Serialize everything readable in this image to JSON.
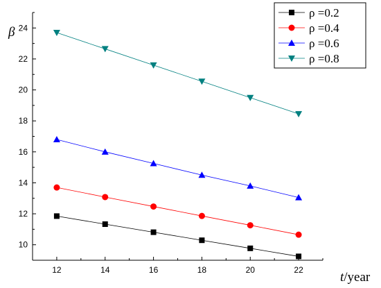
{
  "chart_data": {
    "type": "line",
    "xlabel": {
      "symbol": "t",
      "unit": "/year"
    },
    "ylabel": "β",
    "xlim": [
      11,
      23
    ],
    "ylim": [
      9,
      25
    ],
    "x_ticks": [
      12,
      14,
      16,
      18,
      20,
      22
    ],
    "y_ticks": [
      10,
      12,
      14,
      16,
      18,
      20,
      22,
      24
    ],
    "x": [
      12,
      14,
      16,
      18,
      20,
      22
    ],
    "grid": false,
    "legend_position": "top-right",
    "series": [
      {
        "name": "ρ =0.2",
        "marker": "square",
        "color": "#000000",
        "values": [
          11.85,
          11.33,
          10.81,
          10.29,
          9.77,
          9.25
        ]
      },
      {
        "name": "ρ =0.4",
        "marker": "circle",
        "color": "#ff0000",
        "values": [
          13.7,
          13.08,
          12.47,
          11.86,
          11.26,
          10.65
        ]
      },
      {
        "name": "ρ =0.6",
        "marker": "triangle-up",
        "color": "#0000ff",
        "values": [
          16.8,
          16.0,
          15.25,
          14.5,
          13.8,
          13.05
        ]
      },
      {
        "name": "ρ =0.8",
        "marker": "triangle-down",
        "color": "#008080",
        "values": [
          23.7,
          22.65,
          21.6,
          20.55,
          19.5,
          18.45
        ]
      }
    ]
  }
}
